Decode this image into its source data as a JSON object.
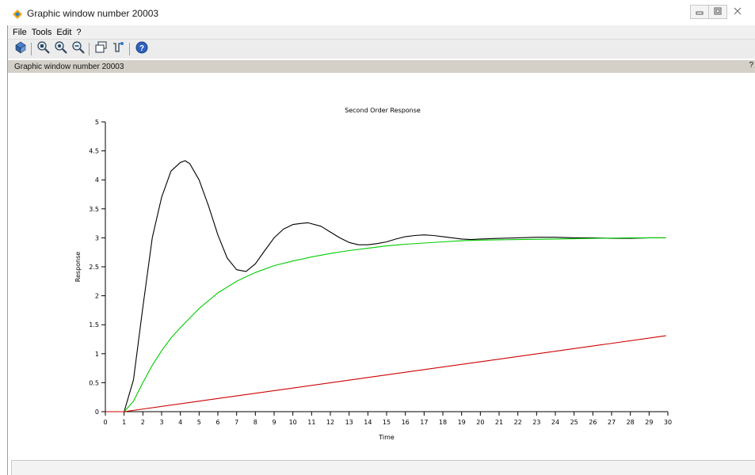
{
  "window": {
    "title": "Graphic window number 20003",
    "icon": "scilab-diamond-icon",
    "controls": [
      "minimize-icon",
      "maximize-icon",
      "close-icon"
    ]
  },
  "menu": {
    "items": [
      "File",
      "Tools",
      "Edit",
      "?"
    ]
  },
  "toolbar": {
    "buttons": [
      {
        "name": "rotate-icon"
      },
      {
        "name": "zoom-area-icon"
      },
      {
        "name": "zoom-in-icon"
      },
      {
        "name": "zoom-out-icon"
      },
      {
        "name": "select-figure-icon"
      },
      {
        "name": "datatip-icon"
      },
      {
        "name": "help-icon"
      }
    ]
  },
  "infobar": {
    "label": "Graphic window number 20003",
    "right": "?"
  },
  "colors": {
    "black_series": "#000000",
    "green_series": "#00cc00",
    "red_series": "#cc0000"
  },
  "chart_data": {
    "type": "line",
    "title": "Second Order Response",
    "xlabel": "Time",
    "ylabel": "Response",
    "xlim": [
      0,
      30
    ],
    "ylim": [
      0,
      5
    ],
    "xticks": [
      0,
      1,
      2,
      3,
      4,
      5,
      6,
      7,
      8,
      9,
      10,
      11,
      12,
      13,
      14,
      15,
      16,
      17,
      18,
      19,
      20,
      21,
      22,
      23,
      24,
      25,
      26,
      27,
      28,
      29,
      30
    ],
    "yticks": [
      0,
      0.5,
      1,
      1.5,
      2,
      2.5,
      3,
      3.5,
      4,
      4.5,
      5
    ],
    "grid": false,
    "series": [
      {
        "color": "#000000",
        "x": [
          0,
          1,
          1.5,
          2,
          2.5,
          3,
          3.5,
          4,
          4.25,
          4.5,
          5,
          5.5,
          6,
          6.5,
          7,
          7.5,
          8,
          8.5,
          9,
          9.5,
          10,
          10.5,
          10.8,
          11.5,
          12,
          12.5,
          13,
          13.5,
          14,
          14.5,
          15,
          15.5,
          16,
          16.5,
          17,
          17.5,
          18,
          18.5,
          19,
          19.5,
          20,
          21,
          22,
          23,
          24,
          25,
          26,
          27,
          28,
          29,
          29.9
        ],
        "y": [
          0,
          0,
          0.55,
          1.8,
          3.0,
          3.7,
          4.15,
          4.3,
          4.33,
          4.28,
          4.0,
          3.55,
          3.05,
          2.65,
          2.45,
          2.42,
          2.55,
          2.78,
          3.0,
          3.15,
          3.23,
          3.25,
          3.26,
          3.2,
          3.1,
          3.0,
          2.92,
          2.88,
          2.88,
          2.9,
          2.93,
          2.98,
          3.02,
          3.04,
          3.05,
          3.04,
          3.02,
          3.0,
          2.98,
          2.97,
          2.98,
          2.99,
          3.0,
          3.01,
          3.01,
          3.0,
          3.0,
          2.99,
          2.99,
          3.0,
          3.0
        ]
      },
      {
        "color": "#00cc00",
        "x": [
          0,
          1,
          1.5,
          2,
          2.5,
          3,
          3.5,
          4,
          5,
          6,
          7,
          8,
          9,
          10,
          11,
          12,
          13,
          14,
          15,
          16,
          17,
          18,
          19,
          20,
          22,
          24,
          26,
          28,
          29.9
        ],
        "y": [
          0,
          0,
          0.18,
          0.5,
          0.8,
          1.05,
          1.27,
          1.45,
          1.78,
          2.05,
          2.25,
          2.4,
          2.52,
          2.6,
          2.67,
          2.73,
          2.78,
          2.82,
          2.86,
          2.89,
          2.91,
          2.93,
          2.95,
          2.96,
          2.97,
          2.98,
          2.99,
          3.0,
          3.0
        ]
      },
      {
        "color": "#cc0000",
        "x": [
          0,
          1,
          29.9
        ],
        "y": [
          0,
          0,
          1.31
        ]
      }
    ]
  }
}
